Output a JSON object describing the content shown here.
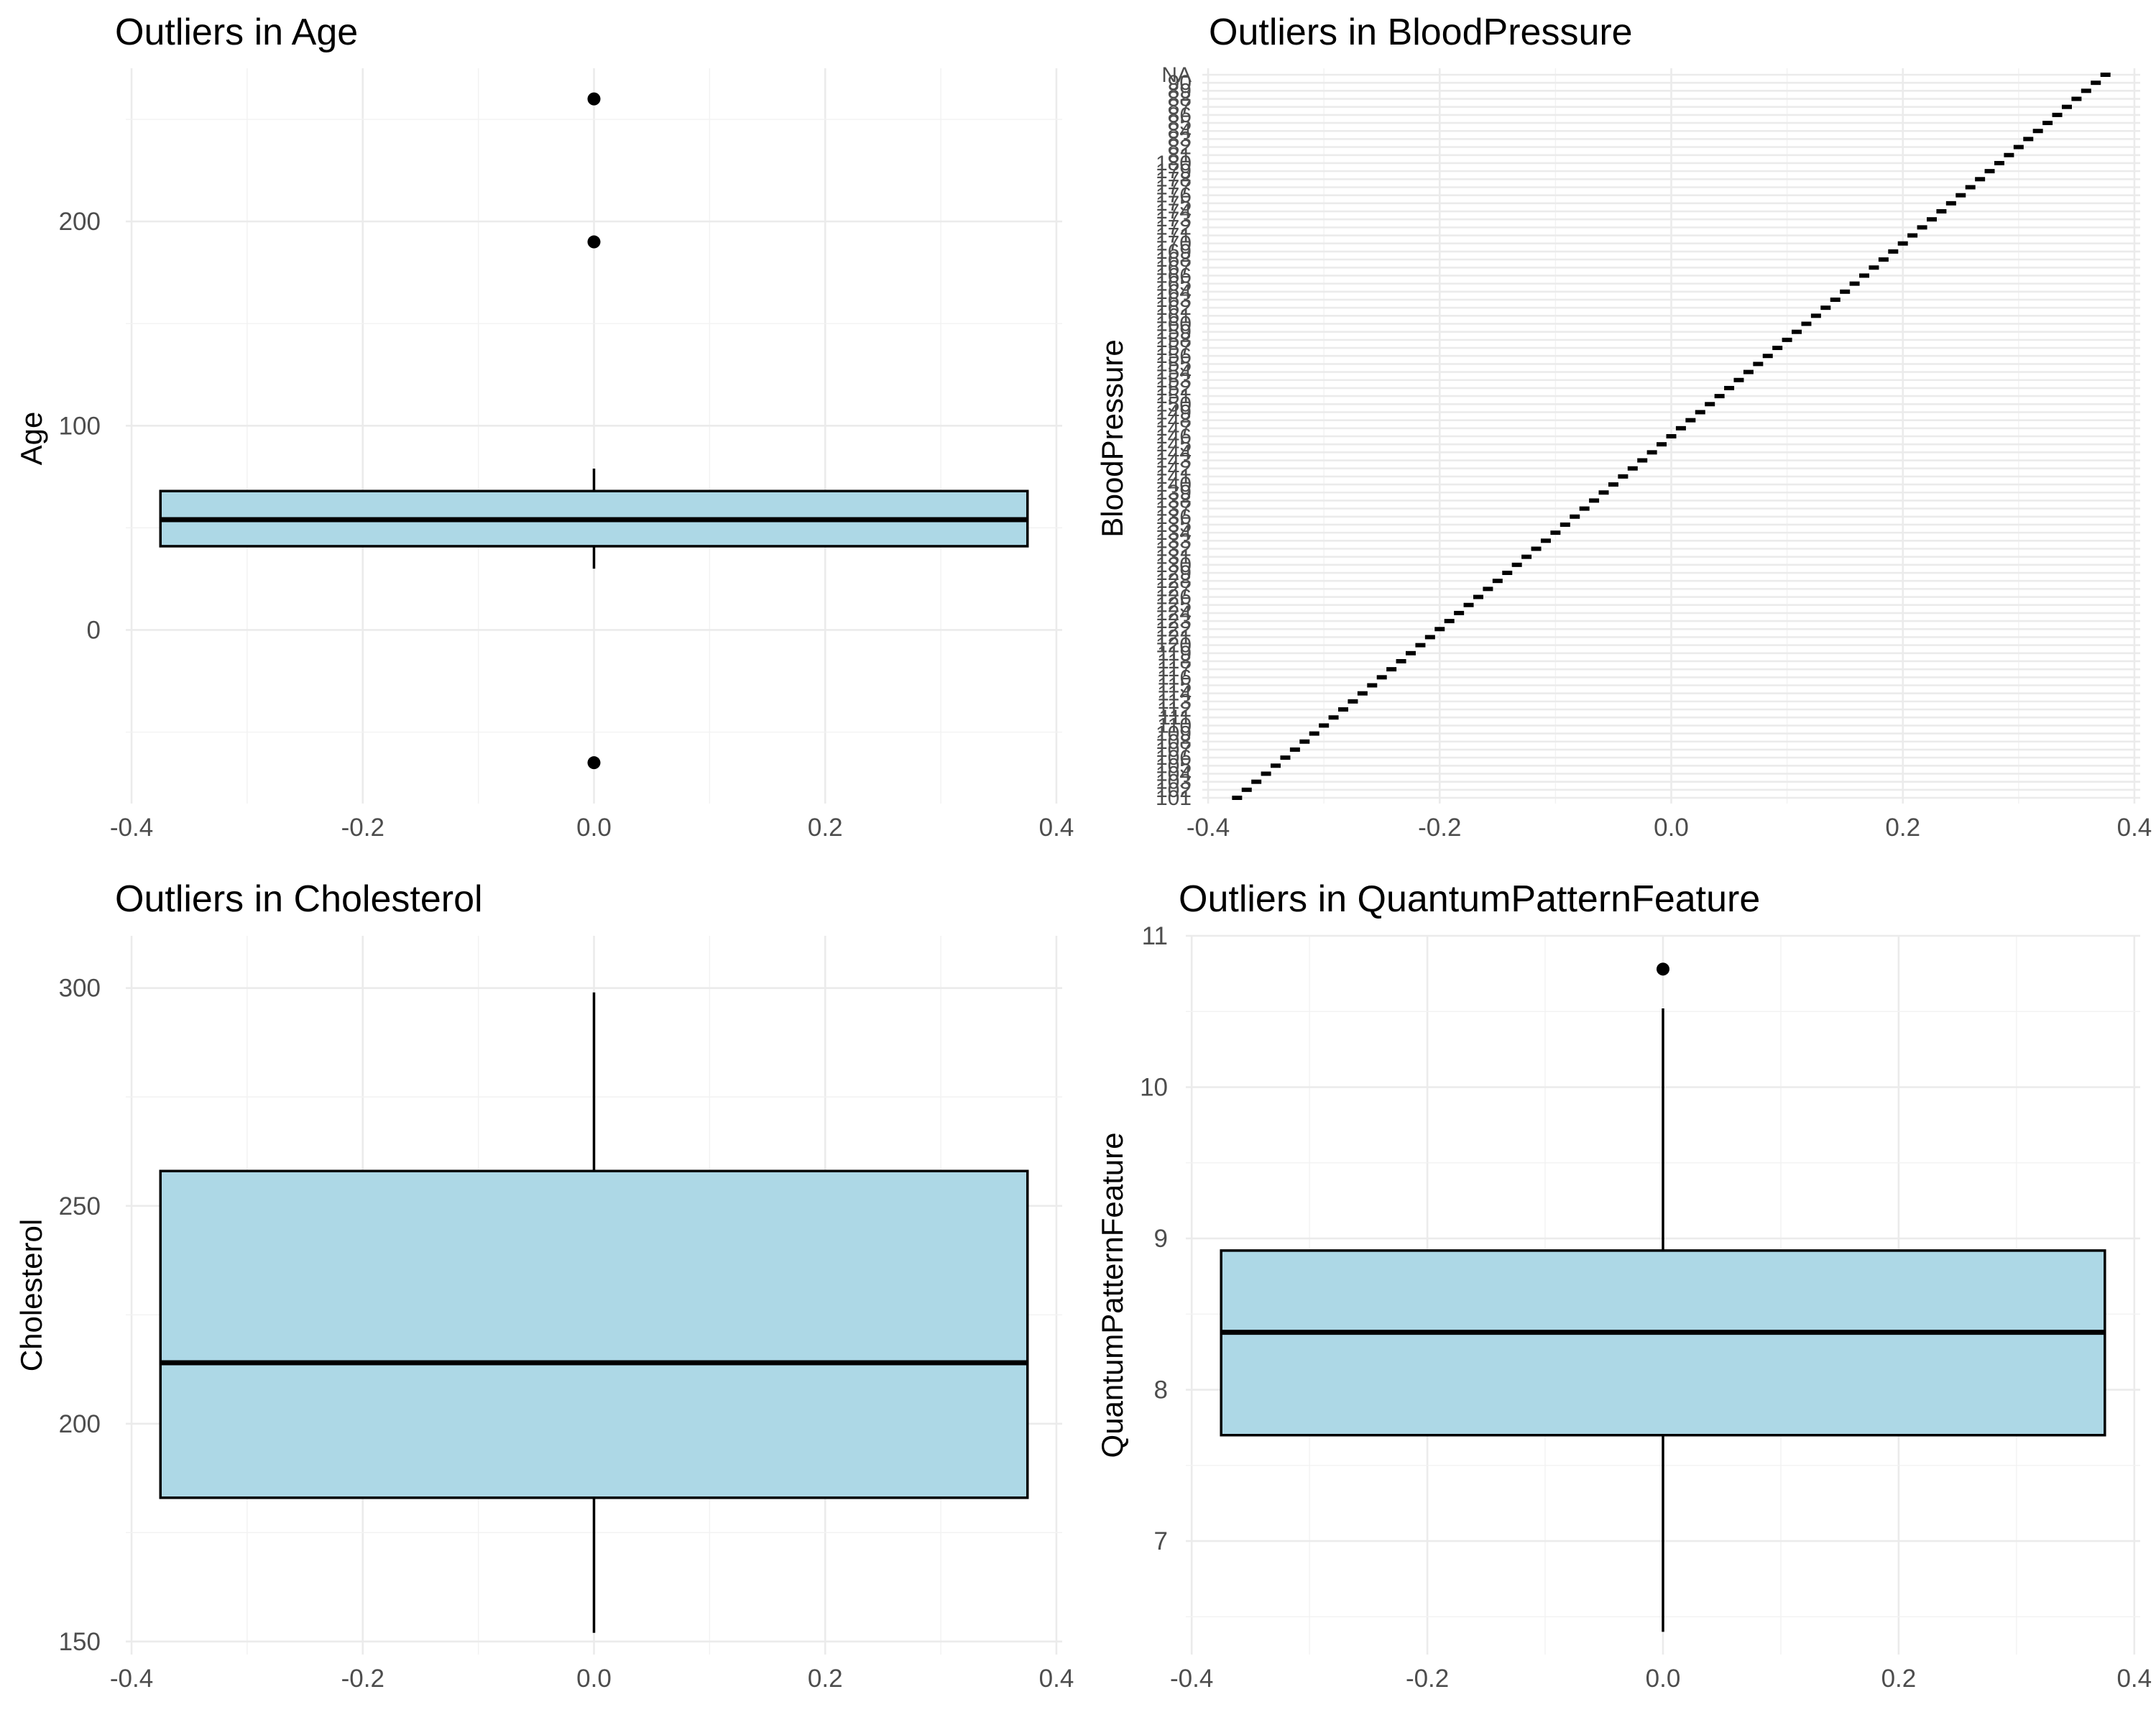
{
  "chart_data": [
    {
      "type": "box",
      "title": "Outliers in Age",
      "ylabel": "Age",
      "xlabel": "",
      "xlim": [
        -0.405,
        0.405
      ],
      "ylim": [
        -85,
        275
      ],
      "x_ticks": [
        "-0.4",
        "-0.2",
        "0.0",
        "0.2",
        "0.4"
      ],
      "y_ticks": [
        0,
        100,
        200
      ],
      "box": {
        "x_min": -0.375,
        "x_max": 0.375,
        "whisker_low": 30,
        "q1": 41,
        "median": 54,
        "q3": 68,
        "whisker_high": 79
      },
      "outliers": [
        260,
        190,
        -65
      ],
      "fill": "#add8e6",
      "grid": true
    },
    {
      "type": "box",
      "title": "Outliers in BloodPressure",
      "ylabel": "BloodPressure",
      "xlabel": "",
      "xlim": [
        -0.405,
        0.405
      ],
      "x_ticks": [
        "-0.4",
        "-0.2",
        "0.0",
        "0.2",
        "0.4"
      ],
      "box_x_range": [
        -0.375,
        0.375
      ],
      "categories": [
        "101",
        "102",
        "103",
        "104",
        "105",
        "106",
        "107",
        "108",
        "109",
        "110",
        "111",
        "112",
        "113",
        "114",
        "115",
        "116",
        "117",
        "118",
        "119",
        "120",
        "121",
        "122",
        "123",
        "124",
        "125",
        "126",
        "127",
        "128",
        "129",
        "130",
        "131",
        "132",
        "133",
        "134",
        "135",
        "136",
        "137",
        "138",
        "139",
        "140",
        "141",
        "142",
        "143",
        "144",
        "145",
        "146",
        "147",
        "148",
        "149",
        "150",
        "151",
        "152",
        "153",
        "154",
        "155",
        "156",
        "157",
        "158",
        "159",
        "160",
        "161",
        "162",
        "163",
        "164",
        "165",
        "166",
        "167",
        "168",
        "169",
        "170",
        "171",
        "172",
        "173",
        "174",
        "175",
        "176",
        "177",
        "178",
        "179",
        "180",
        "81",
        "82",
        "83",
        "84",
        "85",
        "86",
        "87",
        "88",
        "89",
        "90",
        "NA"
      ],
      "grid": true
    },
    {
      "type": "box",
      "title": "Outliers in Cholesterol",
      "ylabel": "Cholesterol",
      "xlabel": "",
      "xlim": [
        -0.405,
        0.405
      ],
      "ylim": [
        147,
        312
      ],
      "x_ticks": [
        "-0.4",
        "-0.2",
        "0.0",
        "0.2",
        "0.4"
      ],
      "y_ticks": [
        150,
        200,
        250,
        300
      ],
      "box": {
        "x_min": -0.375,
        "x_max": 0.375,
        "whisker_low": 152,
        "q1": 183,
        "median": 214,
        "q3": 258,
        "whisker_high": 299
      },
      "outliers": [],
      "fill": "#add8e6",
      "grid": true
    },
    {
      "type": "box",
      "title": "Outliers in QuantumPatternFeature",
      "ylabel": "QuantumPatternFeature",
      "xlabel": "",
      "xlim": [
        -0.405,
        0.405
      ],
      "ylim": [
        6.25,
        11
      ],
      "x_ticks": [
        "-0.4",
        "-0.2",
        "0.0",
        "0.2",
        "0.4"
      ],
      "y_ticks": [
        7,
        8,
        9,
        10,
        11
      ],
      "box": {
        "x_min": -0.375,
        "x_max": 0.375,
        "whisker_low": 6.4,
        "q1": 7.7,
        "median": 8.38,
        "q3": 8.92,
        "whisker_high": 10.52
      },
      "outliers": [
        10.78
      ],
      "fill": "#add8e6",
      "grid": true
    }
  ]
}
